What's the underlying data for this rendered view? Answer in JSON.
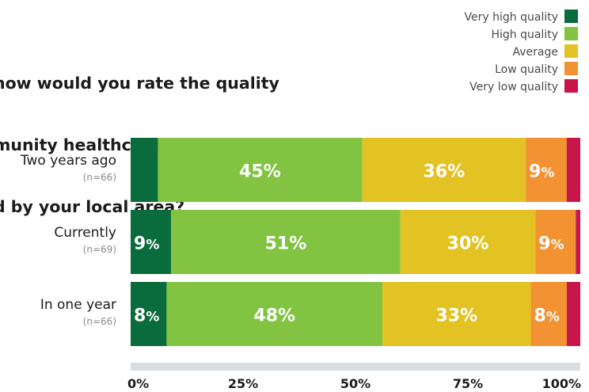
{
  "chart_data": {
    "type": "bar",
    "orientation": "horizontal",
    "stacked": true,
    "title_lines": [
      "how would you rate the quality",
      "munity healthcare currently",
      "d by your local area?"
    ],
    "categories": [
      "Two years ago",
      "Currently",
      "In one year"
    ],
    "category_notes": [
      "(n=66)",
      "(n=69)",
      "(n=66)"
    ],
    "series": [
      {
        "name": "Very high quality",
        "color": "#0a6b3c",
        "values": [
          6,
          9,
          8
        ],
        "labels": [
          "",
          "9%",
          "8%"
        ]
      },
      {
        "name": "High quality",
        "color": "#82c341",
        "values": [
          45,
          51,
          48
        ],
        "labels": [
          "45%",
          "51%",
          "48%"
        ]
      },
      {
        "name": "Average",
        "color": "#e3c224",
        "values": [
          36,
          30,
          33
        ],
        "labels": [
          "36%",
          "30%",
          "33%"
        ]
      },
      {
        "name": "Low quality",
        "color": "#f39232",
        "values": [
          9,
          9,
          8
        ],
        "labels": [
          "9%",
          "9%",
          "8%"
        ]
      },
      {
        "name": "Very low quality",
        "color": "#c8164b",
        "values": [
          3,
          1,
          3
        ],
        "labels": [
          "",
          "",
          ""
        ]
      }
    ],
    "xlim": [
      0,
      100
    ],
    "xticks": [
      "0%",
      "25%",
      "50%",
      "75%",
      "100%"
    ],
    "legend_position": "top-right"
  }
}
